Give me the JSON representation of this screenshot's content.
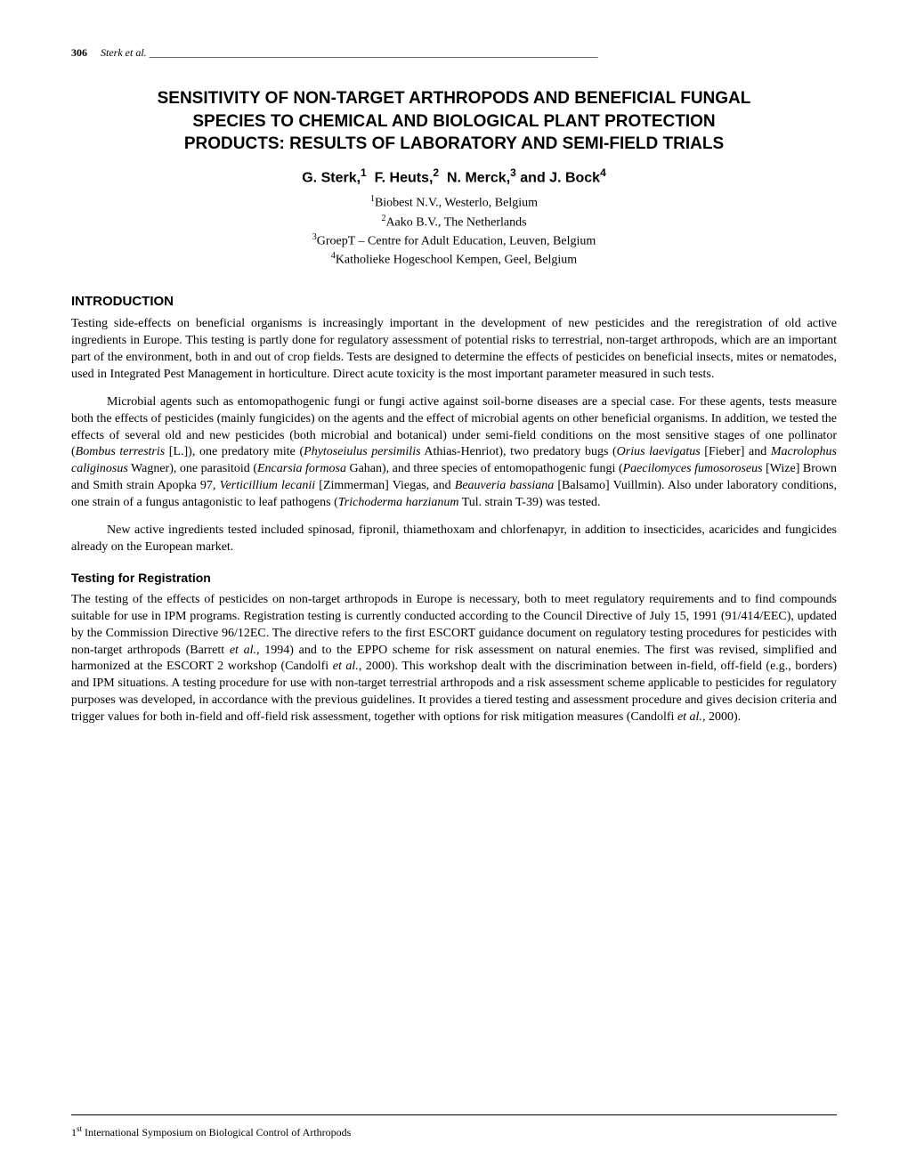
{
  "header": {
    "page_number": "306",
    "running_authors": "Sterk et al.",
    "dash_fill": "____________________________________________________________________________________"
  },
  "title_lines": [
    "SENSITIVITY OF NON-TARGET ARTHROPODS AND BENEFICIAL FUNGAL",
    "SPECIES TO CHEMICAL AND BIOLOGICAL PLANT PROTECTION",
    "PRODUCTS: RESULTS OF LABORATORY AND SEMI-FIELD TRIALS"
  ],
  "authors_html": "G. Sterk,<sup>1</sup>&nbsp;&nbsp;F. Heuts,<sup>2</sup>&nbsp;&nbsp;N. Merck,<sup>3</sup> and J. Bock<sup>4</sup>",
  "affiliations_html": "<sup>1</sup>Biobest N.V., Westerlo, Belgium<br><sup>2</sup>Aako B.V., The Netherlands<br><sup>3</sup>GroepT – Centre for Adult Education, Leuven, Belgium<br><sup>4</sup>Katholieke Hogeschool Kempen, Geel, Belgium",
  "introduction_heading": "INTRODUCTION",
  "intro_para1": "Testing side-effects on beneficial organisms is increasingly important in the development of new pesticides and the reregistration of old active ingredients in Europe.  This testing is partly done for regulatory assessment of potential risks to terrestrial, non-target arthropods, which are an important part of the environment, both in and out of crop fields. Tests are designed to determine the effects of pesticides on beneficial insects, mites or nematodes, used in Integrated Pest Management in horticulture.  Direct acute toxicity is the most important parameter measured in such tests.",
  "intro_para2_html": "Microbial agents such as entomopathogenic fungi or fungi active against soil-borne diseases are a special case.  For these agents, tests measure both the effects of pesticides (mainly fungicides) on the agents and the effect of microbial agents on other beneficial organisms.  In addition, we tested the effects of several old and new pesticides (both microbial and botanical) under semi-field conditions on the most sensitive stages of one pollinator (<i>Bombus terrestris</i> [L.]), one predatory mite (<i>Phytoseiulus persimilis</i> Athias-Henriot), two predatory bugs (<i>Orius laevigatus</i> [Fieber] and <i>Macrolophus caliginosus</i> Wagner), one parasitoid (<i>Encarsia formosa</i> Gahan), and three species of entomopathogenic fungi (<i>Paecilomyces fumosoroseus</i> [Wize] Brown and Smith strain Apopka 97<i>, Verticillium lecanii</i> [Zimmerman] Viegas, and <i>Beauveria bassiana</i> [Balsamo] Vuillmin).  Also under laboratory conditions, one strain of a fungus antagonistic to leaf pathogens (<i>Trichoderma harzianum</i> Tul. strain T-39) was tested.",
  "intro_para3": "New active ingredients tested included spinosad, fipronil, thiamethoxam and chlorfenapyr, in addition to insecticides, acaricides and fungicides already on the European market.",
  "testing_heading": "Testing for Registration",
  "testing_para_html": "The testing of the effects of pesticides on non-target arthropods in Europe is necessary, both to meet regulatory requirements and to find compounds suitable for use in IPM programs.  Registration testing is currently conducted according to the Council Directive of July 15, 1991 (91/414/EEC), updated by the Commission Directive 96/12EC.  The directive refers to the first ESCORT guidance document on regulatory testing procedures for pesticides with non-target arthropods (Barrett <i>et al.</i>, 1994) and to the EPPO scheme for risk assessment on natural enemies.  The first was revised, simplified and harmonized at the ESCORT 2 workshop (Candolfi <i>et al.</i>, 2000).  This workshop dealt with the discrimination between in-field, off-field (e.g., borders) and IPM situations. A testing procedure for use with non-target terrestrial arthropods and a risk assessment scheme applicable to pesticides for regulatory purposes was developed, in accordance with the previous guidelines. It provides a tiered testing and assessment procedure and gives decision criteria and trigger values for both in-field and off-field risk assessment, together with options for risk mitigation measures (Candolfi <i>et al.</i>, 2000).",
  "footer_html": "1<sup>st</sup> International Symposium on Biological Control of Arthropods"
}
